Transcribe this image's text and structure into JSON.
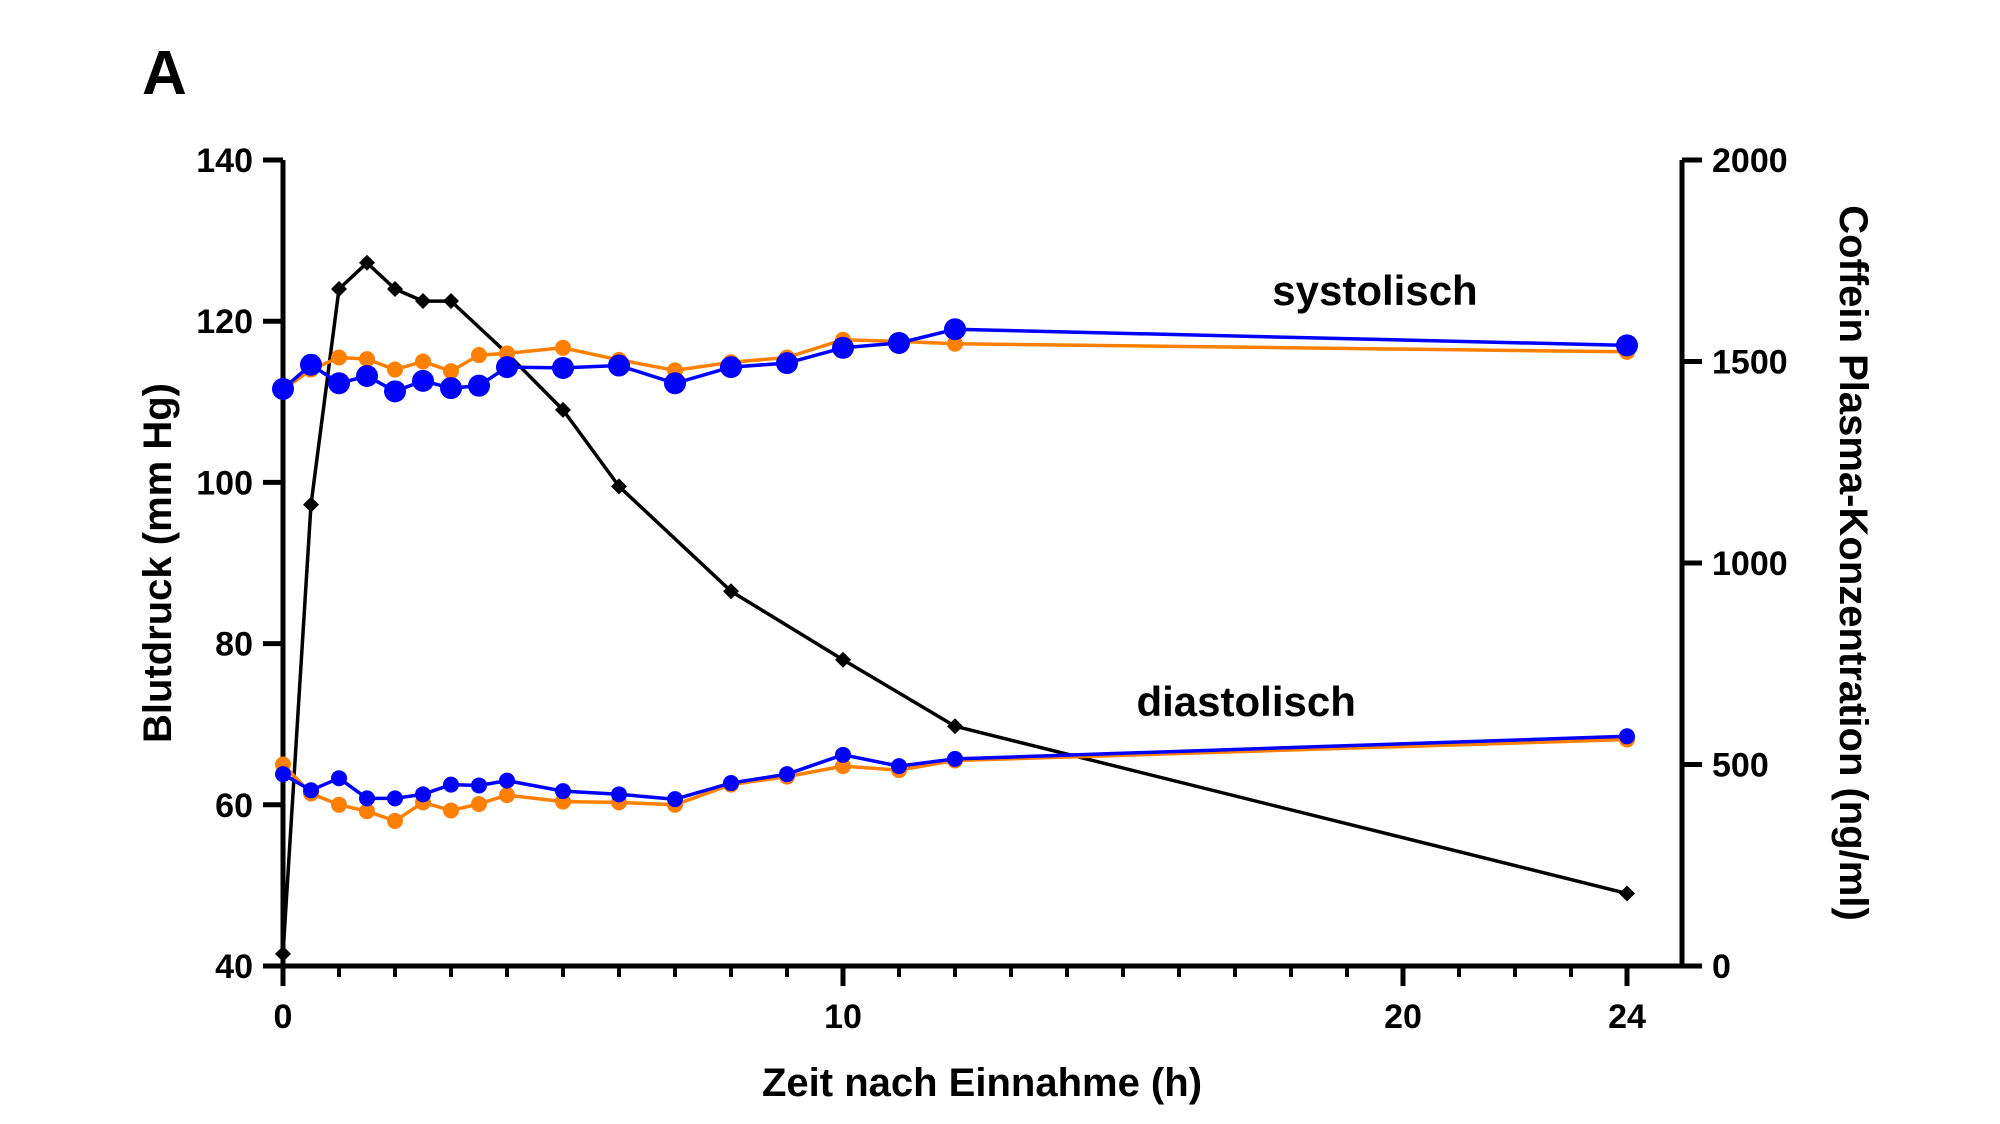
{
  "panel_label": "A",
  "chart_data": {
    "type": "line",
    "xlabel": "Zeit nach Einnahme (h)",
    "ylabel_left": "Blutdruck (mm Hg)",
    "ylabel_right": "Coffein Plasma-Konzentration (ng/ml)",
    "xlim": [
      0,
      24
    ],
    "ylim_left": [
      40,
      140
    ],
    "ylim_right": [
      0,
      2000
    ],
    "x_ticks": [
      0,
      10,
      20,
      24
    ],
    "x_tick_labels": [
      "0",
      "10",
      "20",
      "24"
    ],
    "x_minor_step": 1,
    "y_left_ticks": [
      40,
      60,
      80,
      100,
      120,
      140
    ],
    "y_right_ticks": [
      0,
      500,
      1000,
      1500,
      2000
    ],
    "grid": false,
    "legend": "none",
    "annotations": [
      {
        "text": "systolisch",
        "x": 19.5,
        "y": 122
      },
      {
        "text": "diastolisch",
        "x": 17.2,
        "y": 71
      }
    ],
    "series": [
      {
        "axis": "right",
        "color": "#000000",
        "marker": "diamond",
        "x": [
          0,
          0.5,
          1,
          1.5,
          2,
          2.5,
          3,
          4,
          5,
          6,
          8,
          10,
          12,
          24
        ],
        "values": [
          30,
          1145,
          1680,
          1745,
          1680,
          1650,
          1650,
          1520,
          1380,
          1190,
          930,
          760,
          595,
          180
        ]
      },
      {
        "axis": "left",
        "color": "#ff8000",
        "marker": "circle",
        "x": [
          0,
          0.5,
          1,
          1.5,
          2,
          2.5,
          3,
          3.5,
          4,
          5,
          6,
          7,
          8,
          9,
          10,
          11,
          12,
          24
        ],
        "values": [
          111.5,
          114,
          115.5,
          115.3,
          114,
          115,
          113.8,
          115.8,
          116,
          116.7,
          115.2,
          113.9,
          114.9,
          115.5,
          117.7,
          117.5,
          117.2,
          116.2
        ]
      },
      {
        "axis": "left",
        "color": "#0000ff",
        "marker": "circle",
        "x": [
          0,
          0.5,
          1,
          1.5,
          2,
          2.5,
          3,
          3.5,
          4,
          5,
          6,
          7,
          8,
          9,
          10,
          11,
          12,
          24
        ],
        "values": [
          111.6,
          114.6,
          112.3,
          113.2,
          111.3,
          112.6,
          111.7,
          112,
          114.3,
          114.2,
          114.5,
          112.3,
          114.3,
          114.8,
          116.7,
          117.3,
          119,
          117
        ]
      },
      {
        "axis": "left",
        "color": "#ff8000",
        "marker": "circle",
        "x": [
          0,
          0.5,
          1,
          1.5,
          2,
          2.5,
          3,
          3.5,
          4,
          5,
          6,
          7,
          8,
          9,
          10,
          11,
          12,
          24
        ],
        "values": [
          65,
          61.4,
          60,
          59.2,
          58,
          60.3,
          59.3,
          60.1,
          61.2,
          60.4,
          60.3,
          60,
          62.5,
          63.5,
          64.8,
          64.3,
          65.5,
          68.1
        ]
      },
      {
        "axis": "left",
        "color": "#0000ff",
        "marker": "circle",
        "x": [
          0,
          0.5,
          1,
          1.5,
          2,
          2.5,
          3,
          3.5,
          4,
          5,
          6,
          7,
          8,
          9,
          10,
          11,
          12,
          24
        ],
        "values": [
          63.8,
          61.8,
          63.3,
          60.8,
          60.8,
          61.3,
          62.5,
          62.4,
          63,
          61.7,
          61.3,
          60.7,
          62.7,
          63.8,
          66.2,
          64.8,
          65.7,
          68.5
        ]
      }
    ]
  }
}
